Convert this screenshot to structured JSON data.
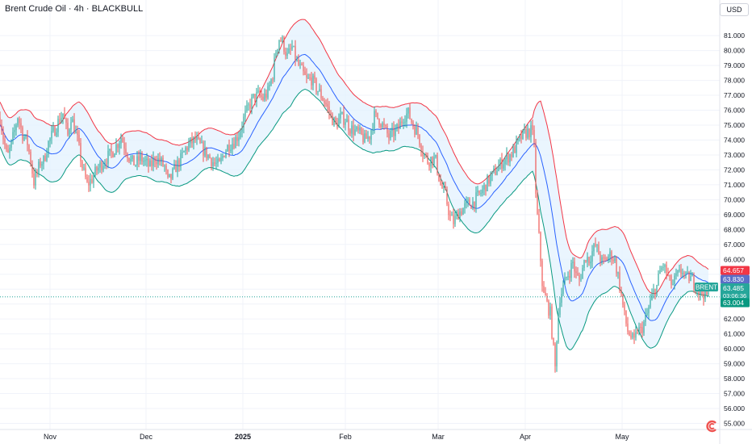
{
  "header": {
    "title": "Brent Crude Oil · 4h · BLACKBULL",
    "currency": "USD"
  },
  "colors": {
    "up": "#26a69a",
    "down": "#ef5350",
    "upper_band": "#f23645",
    "lower_band": "#089981",
    "basis": "#2962ff",
    "band_fill": "#e3f2fd",
    "grid": "#f0f3fa"
  },
  "chart_data": {
    "type": "candlestick",
    "title": "Brent Crude Oil · 4h · BLACKBULL",
    "ylim": [
      54.7,
      82.2
    ],
    "y_ticks": [
      "55.000",
      "56.000",
      "57.000",
      "58.000",
      "59.000",
      "60.000",
      "61.000",
      "62.000",
      "63.000",
      "64.000",
      "65.000",
      "66.000",
      "67.000",
      "68.000",
      "69.000",
      "70.000",
      "71.000",
      "72.000",
      "73.000",
      "74.000",
      "75.000",
      "76.000",
      "77.000",
      "78.000",
      "79.000",
      "80.000",
      "81.000"
    ],
    "x_ticks": [
      "Nov",
      "Dec",
      "2025",
      "Feb",
      "Mar",
      "Apr",
      "May"
    ],
    "close_path": [
      [
        0,
        75.5
      ],
      [
        4,
        74.2
      ],
      [
        9,
        72.8
      ],
      [
        13,
        73.5
      ],
      [
        18,
        74.6
      ],
      [
        22,
        75.6
      ],
      [
        28,
        74.4
      ],
      [
        34,
        73.8
      ],
      [
        38,
        72.6
      ],
      [
        42,
        71.2
      ],
      [
        46,
        71.8
      ],
      [
        50,
        72.5
      ],
      [
        54,
        72.6
      ],
      [
        60,
        73.8
      ],
      [
        66,
        74.5
      ],
      [
        72,
        75.2
      ],
      [
        78,
        75.8
      ],
      [
        84,
        74.3
      ],
      [
        88,
        75.6
      ],
      [
        92,
        74.8
      ],
      [
        96,
        74.0
      ],
      [
        102,
        72.2
      ],
      [
        108,
        71.0
      ],
      [
        114,
        71.4
      ],
      [
        120,
        72.0
      ],
      [
        126,
        72.4
      ],
      [
        132,
        72.8
      ],
      [
        138,
        73.1
      ],
      [
        144,
        73.6
      ],
      [
        150,
        74.2
      ],
      [
        156,
        73.4
      ],
      [
        162,
        72.6
      ],
      [
        168,
        72.4
      ],
      [
        174,
        72.8
      ],
      [
        180,
        72.5
      ],
      [
        186,
        72.2
      ],
      [
        192,
        72.8
      ],
      [
        198,
        72.6
      ],
      [
        204,
        72.2
      ],
      [
        208,
        71.2
      ],
      [
        212,
        71.5
      ],
      [
        218,
        72.2
      ],
      [
        224,
        72.7
      ],
      [
        230,
        73.4
      ],
      [
        236,
        73.8
      ],
      [
        242,
        74.0
      ],
      [
        248,
        73.6
      ],
      [
        254,
        73.2
      ],
      [
        260,
        72.8
      ],
      [
        266,
        72.4
      ],
      [
        272,
        72.3
      ],
      [
        278,
        73.2
      ],
      [
        284,
        73.7
      ],
      [
        290,
        73.9
      ],
      [
        296,
        74.4
      ],
      [
        302,
        75.4
      ],
      [
        308,
        76.2
      ],
      [
        314,
        76.8
      ],
      [
        320,
        77.0
      ],
      [
        326,
        76.8
      ],
      [
        332,
        77.2
      ],
      [
        338,
        78.4
      ],
      [
        342,
        80.0
      ],
      [
        346,
        80.8
      ],
      [
        350,
        80.6
      ],
      [
        356,
        79.6
      ],
      [
        362,
        80.2
      ],
      [
        368,
        79.2
      ],
      [
        374,
        78.6
      ],
      [
        380,
        78.0
      ],
      [
        386,
        78.1
      ],
      [
        392,
        77.5
      ],
      [
        398,
        77.0
      ],
      [
        404,
        76.4
      ],
      [
        410,
        75.6
      ],
      [
        416,
        75.0
      ],
      [
        422,
        75.5
      ],
      [
        428,
        75.4
      ],
      [
        434,
        74.8
      ],
      [
        440,
        74.6
      ],
      [
        446,
        74.4
      ],
      [
        452,
        74.0
      ],
      [
        458,
        74.3
      ],
      [
        464,
        75.6
      ],
      [
        470,
        75.4
      ],
      [
        476,
        74.8
      ],
      [
        482,
        74.2
      ],
      [
        488,
        74.5
      ],
      [
        494,
        74.8
      ],
      [
        500,
        75.6
      ],
      [
        506,
        75.8
      ],
      [
        512,
        75.0
      ],
      [
        518,
        74.4
      ],
      [
        524,
        73.2
      ],
      [
        530,
        72.6
      ],
      [
        536,
        72.8
      ],
      [
        540,
        72.6
      ],
      [
        546,
        71.0
      ],
      [
        552,
        70.3
      ],
      [
        558,
        68.8
      ],
      [
        562,
        68.5
      ],
      [
        568,
        69.1
      ],
      [
        574,
        69.4
      ],
      [
        580,
        69.7
      ],
      [
        586,
        69.8
      ],
      [
        592,
        70.2
      ],
      [
        598,
        70.6
      ],
      [
        604,
        71.2
      ],
      [
        610,
        71.6
      ],
      [
        616,
        72.1
      ],
      [
        622,
        72.5
      ],
      [
        628,
        72.8
      ],
      [
        634,
        73.1
      ],
      [
        640,
        73.6
      ],
      [
        646,
        74.2
      ],
      [
        652,
        74.5
      ],
      [
        658,
        74.6
      ],
      [
        662,
        74.0
      ],
      [
        664,
        70.2
      ],
      [
        667,
        68.2
      ],
      [
        670,
        66.0
      ],
      [
        673,
        63.7
      ],
      [
        676,
        63.4
      ],
      [
        679,
        62.8
      ],
      [
        682,
        62.4
      ],
      [
        685,
        60.5
      ],
      [
        688,
        58.7
      ],
      [
        691,
        61.8
      ],
      [
        694,
        63.5
      ],
      [
        698,
        64.1
      ],
      [
        702,
        64.8
      ],
      [
        706,
        65.2
      ],
      [
        710,
        65.8
      ],
      [
        714,
        64.9
      ],
      [
        718,
        64.6
      ],
      [
        722,
        65.4
      ],
      [
        726,
        66.2
      ],
      [
        730,
        66.0
      ],
      [
        734,
        66.5
      ],
      [
        738,
        66.9
      ],
      [
        742,
        66.4
      ],
      [
        746,
        65.8
      ],
      [
        750,
        65.9
      ],
      [
        754,
        66.2
      ],
      [
        758,
        66.3
      ],
      [
        762,
        65.9
      ],
      [
        766,
        64.9
      ],
      [
        770,
        63.6
      ],
      [
        774,
        62.2
      ],
      [
        778,
        61.2
      ],
      [
        782,
        60.8
      ],
      [
        786,
        60.4
      ],
      [
        790,
        61.3
      ],
      [
        794,
        61.2
      ],
      [
        798,
        61.7
      ],
      [
        802,
        62.3
      ],
      [
        806,
        63.1
      ],
      [
        810,
        63.8
      ],
      [
        814,
        64.2
      ],
      [
        818,
        65.2
      ],
      [
        822,
        65.6
      ],
      [
        826,
        65.1
      ],
      [
        830,
        64.5
      ],
      [
        834,
        64.3
      ],
      [
        838,
        64.8
      ],
      [
        842,
        65.0
      ],
      [
        846,
        65.3
      ],
      [
        850,
        64.7
      ],
      [
        854,
        64.8
      ],
      [
        858,
        64.6
      ],
      [
        862,
        64.3
      ],
      [
        866,
        63.9
      ],
      [
        870,
        63.8
      ],
      [
        874,
        63.7
      ],
      [
        878,
        63.5
      ]
    ],
    "bollinger": {
      "length": 20,
      "mult": 2,
      "width": [
        [
          0,
          1.5
        ],
        [
          60,
          1.9
        ],
        [
          120,
          1.7
        ],
        [
          200,
          1.4
        ],
        [
          280,
          1.3
        ],
        [
          320,
          1.7
        ],
        [
          360,
          2.6
        ],
        [
          420,
          1.7
        ],
        [
          500,
          1.4
        ],
        [
          560,
          1.9
        ],
        [
          620,
          1.4
        ],
        [
          660,
          1.8
        ],
        [
          670,
          3.7
        ],
        [
          690,
          4.4
        ],
        [
          720,
          2.5
        ],
        [
          760,
          2.0
        ],
        [
          790,
          2.1
        ],
        [
          830,
          1.5
        ],
        [
          878,
          0.9
        ]
      ]
    },
    "last_price": {
      "symbol": "BRENT",
      "value": "63.485",
      "countdown": "03:06:36",
      "upper_band": "64.657",
      "basis": "63.830",
      "lower_band": "63.004"
    }
  }
}
